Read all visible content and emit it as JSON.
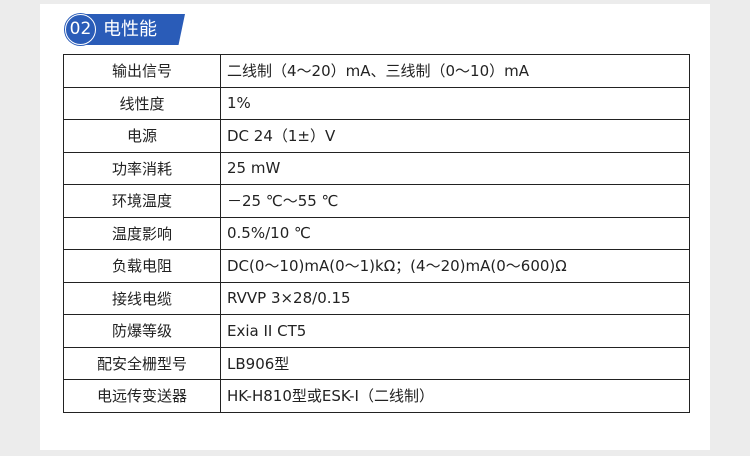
{
  "section": {
    "number": "02",
    "title": "电性能",
    "color": "#2a5cb8"
  },
  "rows": [
    {
      "label": "输出信号",
      "value": "二线制（4～20）mA、三线制（0～10）mA"
    },
    {
      "label": "线性度",
      "value": "1%"
    },
    {
      "label": "电源",
      "value": "DC  24（1±）V"
    },
    {
      "label": "功率消耗",
      "value": "25  mW"
    },
    {
      "label": "环境温度",
      "value": "－25 ℃～55 ℃"
    },
    {
      "label": "温度影响",
      "value": "0.5%/10 ℃"
    },
    {
      "label": "负载电阻",
      "value": "DC(0～10)mA(0～1)kΩ；(4～20)mA(0～600)Ω"
    },
    {
      "label": "接线电缆",
      "value": "RVVP  3×28/0.15"
    },
    {
      "label": "防爆等级",
      "value": "Exia II CT5"
    },
    {
      "label": "配安全栅型号",
      "value": "LB906型"
    },
    {
      "label": "电远传变送器",
      "value": "HK-H810型或ESK-I（二线制）"
    }
  ]
}
